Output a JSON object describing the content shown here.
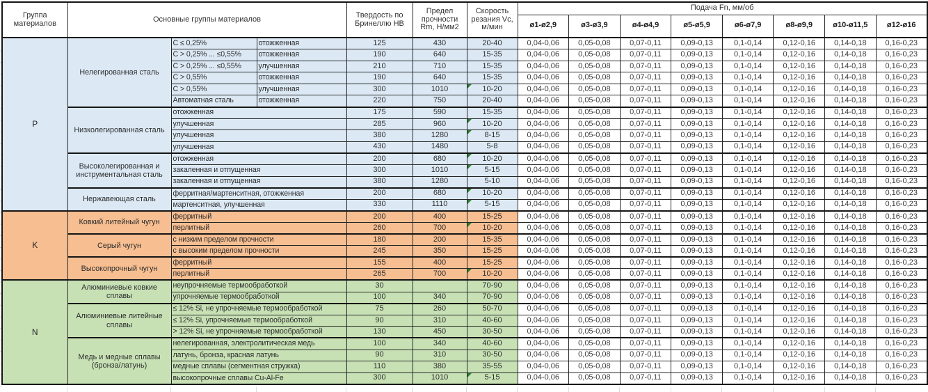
{
  "colors": {
    "section_p": "#dce9f5",
    "section_k": "#f6be91",
    "section_n": "#c7e1b5",
    "comment_flag": "#2e7d32",
    "grid": "#262626"
  },
  "table": {
    "header": {
      "col_group": "Группа материалов",
      "col_main": "Основные группы материалов",
      "col_hb": "Твердость по Бринеллю HB",
      "col_rm": "Предел прочности Rm, Н/мм2",
      "col_vc": "Скорость резания Vc, м/мин",
      "feed_title": "Подача Fn, мм/об",
      "feed_cols": [
        "ø1-ø2,9",
        "ø3-ø3,9",
        "ø4-ø4,9",
        "ø5-ø5,9",
        "ø6-ø7,9",
        "ø8-ø9,9",
        "ø10-ø11,5",
        "ø12-ø16"
      ]
    },
    "feed_values": [
      "0,04-0,06",
      "0,05-0,08",
      "0,07-0,11",
      "0,09-0,13",
      "0,1-0,14",
      "0,12-0,16",
      "0,14-0,18",
      "0,16-0,23"
    ],
    "groups": [
      {
        "code": "P",
        "families": [
          {
            "name": "Нелегированная сталь",
            "rows": [
              {
                "c1": "C ≤ 0,25%",
                "c2": "отожженная",
                "hb": "125",
                "rm": "430",
                "vc": "20-40",
                "flag": false
              },
              {
                "c1": "C > 0,25% ... ≤0,55%",
                "c2": "отожженная",
                "hb": "190",
                "rm": "640",
                "vc": "15-35",
                "flag": false
              },
              {
                "c1": "C > 0,25% ... ≤0,55%",
                "c2": "улучшенная",
                "hb": "210",
                "rm": "710",
                "vc": "15-35",
                "flag": false
              },
              {
                "c1": "C > 0,55%",
                "c2": "отожженная",
                "hb": "190",
                "rm": "640",
                "vc": "15-35",
                "flag": false
              },
              {
                "c1": "C > 0,55%",
                "c2": "улучшенная",
                "hb": "300",
                "rm": "1010",
                "vc": "10-20",
                "flag": true
              },
              {
                "c1": "Автоматная сталь",
                "c2": "отожженная",
                "hb": "220",
                "rm": "750",
                "vc": "20-40",
                "flag": false
              }
            ]
          },
          {
            "name": "Низколегированная сталь",
            "rows": [
              {
                "desc": "отожженная",
                "hb": "175",
                "rm": "590",
                "vc": "15-35",
                "flag": false
              },
              {
                "desc": "улучшенная",
                "hb": "285",
                "rm": "960",
                "vc": "10-20",
                "flag": true
              },
              {
                "desc": "улучшенная",
                "hb": "380",
                "rm": "1280",
                "vc": "8-15",
                "flag": true
              },
              {
                "desc": "улучшенная",
                "hb": "430",
                "rm": "1480",
                "vc": "5-8",
                "flag": false
              }
            ]
          },
          {
            "name": "Высоколегированная и инструментальная сталь",
            "rows": [
              {
                "desc": "отожженная",
                "hb": "200",
                "rm": "680",
                "vc": "10-20",
                "flag": true
              },
              {
                "desc": "закаленная и отпущенная",
                "hb": "300",
                "rm": "1010",
                "vc": "5-15",
                "flag": true
              },
              {
                "desc": "закаленная и отпущенная",
                "hb": "380",
                "rm": "1280",
                "vc": "5-10",
                "flag": false
              }
            ]
          },
          {
            "name": "Нержавеющая сталь",
            "rows": [
              {
                "desc": "ферритная/мартенситная, отожженная",
                "hb": "200",
                "rm": "680",
                "vc": "10-20",
                "flag": true
              },
              {
                "desc": "мартенситная, улучшенная",
                "hb": "330",
                "rm": "1110",
                "vc": "5-15",
                "flag": true
              }
            ]
          }
        ]
      },
      {
        "code": "K",
        "families": [
          {
            "name": "Ковкий литейный чугун",
            "rows": [
              {
                "desc": "ферритный",
                "hb": "200",
                "rm": "400",
                "vc": "15-25",
                "flag": false
              },
              {
                "desc": "перлитный",
                "hb": "260",
                "rm": "700",
                "vc": "10-20",
                "flag": true
              }
            ]
          },
          {
            "name": "Серый чугун",
            "rows": [
              {
                "desc": "с низким пределом прочности",
                "hb": "180",
                "rm": "200",
                "vc": "15-35",
                "flag": false
              },
              {
                "desc": "с высоким пределом прочности",
                "hb": "245",
                "rm": "350",
                "vc": "15-25",
                "flag": false
              }
            ]
          },
          {
            "name": "Высокопрочный чугун",
            "rows": [
              {
                "desc": "ферритный",
                "hb": "155",
                "rm": "400",
                "vc": "15-25",
                "flag": false
              },
              {
                "desc": "перлитный",
                "hb": "265",
                "rm": "700",
                "vc": "10-20",
                "flag": true
              }
            ]
          }
        ]
      },
      {
        "code": "N",
        "families": [
          {
            "name": "Алюминиевые ковкие сплавы",
            "rows": [
              {
                "desc": "неупрочняемые термообработкой",
                "hb": "30",
                "rm": "",
                "vc": "70-90",
                "flag": false
              },
              {
                "desc": "упрочняемые термообработкой",
                "hb": "100",
                "rm": "340",
                "vc": "70-90",
                "flag": false
              }
            ]
          },
          {
            "name": "Алюминиевые литейные сплавы",
            "rows": [
              {
                "desc": "≤ 12% Si, не упрочняемые термообработкой",
                "hb": "75",
                "rm": "260",
                "vc": "50-70",
                "flag": false
              },
              {
                "desc": "≤ 12% Si, упрочняемые термообработкой",
                "hb": "90",
                "rm": "310",
                "vc": "40-60",
                "flag": false
              },
              {
                "desc": "> 12% Si, не упрочняемые термообработкой",
                "hb": "130",
                "rm": "450",
                "vc": "30-50",
                "flag": false
              }
            ]
          },
          {
            "name": "Медь и медные сплавы (бронза/латунь)",
            "rows": [
              {
                "desc": "нелегированная, электролитическая медь",
                "hb": "100",
                "rm": "340",
                "vc": "40-60",
                "flag": false
              },
              {
                "desc": "латунь, бронза, красная латунь",
                "hb": "90",
                "rm": "310",
                "vc": "30-50",
                "flag": false
              },
              {
                "desc": "медные сплавы (сегментная стружка)",
                "hb": "110",
                "rm": "380",
                "vc": "35-55",
                "flag": false
              },
              {
                "desc": "высокопрочные сплавы Cu-Al-Fe",
                "hb": "300",
                "rm": "1010",
                "vc": "5-15",
                "flag": true
              }
            ]
          }
        ]
      }
    ]
  }
}
